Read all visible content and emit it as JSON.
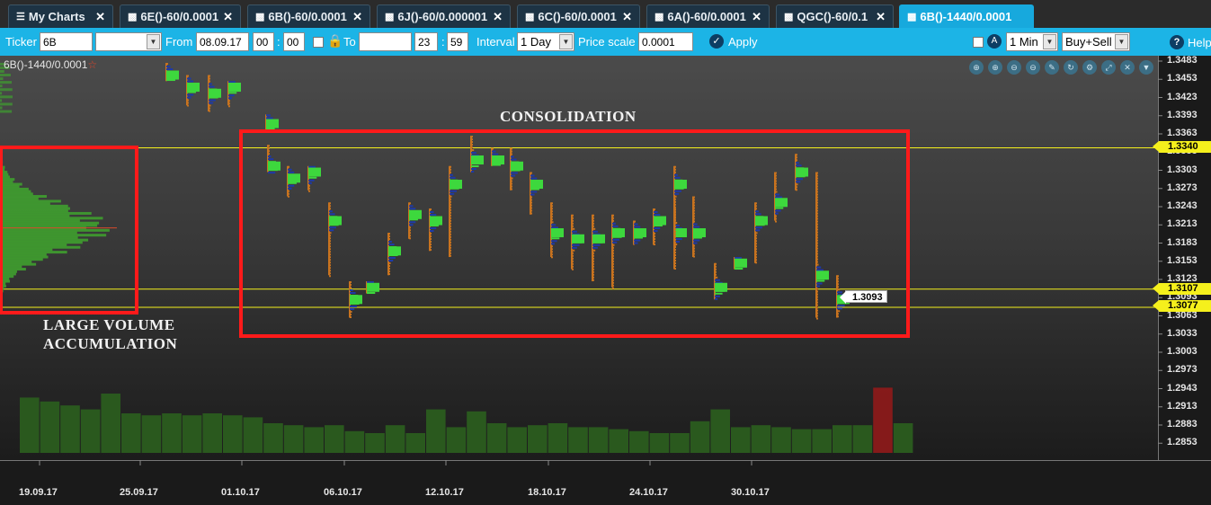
{
  "tabs": [
    {
      "label": "My Charts",
      "icon": "menu-icon",
      "active": false
    },
    {
      "label": "6E()-60/0.0001",
      "icon": "chart-icon",
      "active": false
    },
    {
      "label": "6B()-60/0.0001",
      "icon": "chart-icon",
      "active": false
    },
    {
      "label": "6J()-60/0.000001",
      "icon": "chart-icon",
      "active": false
    },
    {
      "label": "6C()-60/0.0001",
      "icon": "chart-icon",
      "active": false
    },
    {
      "label": "6A()-60/0.0001",
      "icon": "chart-icon",
      "active": false
    },
    {
      "label": "QGC()-60/0.1",
      "icon": "chart-icon",
      "active": false
    },
    {
      "label": "6B()-1440/0.0001",
      "icon": "chart-icon",
      "active": true
    }
  ],
  "toolbar": {
    "ticker_label": "Ticker",
    "ticker_value": "6B",
    "ticker_select_value": "",
    "from_label": "From",
    "from_date": "08.09.17",
    "from_hour": "00",
    "from_min": "00",
    "to_label": "To",
    "to_date": "",
    "to_hour": "23",
    "to_min": "59",
    "interval_label": "Interval",
    "interval_value": "1 Day",
    "price_scale_label": "Price scale",
    "price_scale_value": "0.0001",
    "apply_label": "Apply",
    "timeframe_value": "1 Min",
    "mode_value": "Buy+Sell",
    "help_label": "Help"
  },
  "chart": {
    "name": "6B()-1440/0.0001",
    "nav_icons": [
      "zoom-in-icon",
      "zoom-in-alt-icon",
      "zoom-out-icon",
      "zoom-out-alt-icon",
      "pencil-icon",
      "refresh-icon",
      "settings-icon",
      "expand-icon",
      "close-icon",
      "dropdown-icon"
    ],
    "annotations": {
      "consolidation": "CONSOLIDATION",
      "volume_line1": "LARGE VOLUME",
      "volume_line2": "ACCUMULATION"
    },
    "last_price": "1.3093",
    "level_tags": [
      "1.3340",
      "1.3107",
      "1.3077"
    ],
    "colors": {
      "accent": "#1cb4e6",
      "level_line": "#f5f01c",
      "annotation_box": "#ff1a1a",
      "volume_bar": "#2b5d1f",
      "volume_peak": "#8b1a1a"
    }
  },
  "chart_data": {
    "type": "table",
    "title": "",
    "y_ticks": [
      "1.3483",
      "1.3453",
      "1.3423",
      "1.3393",
      "1.3363",
      "1.3333",
      "1.3303",
      "1.3273",
      "1.3243",
      "1.3213",
      "1.3183",
      "1.3153",
      "1.3123",
      "1.3093",
      "1.3063",
      "1.3033",
      "1.3003",
      "1.2973",
      "1.2943",
      "1.2913",
      "1.2883",
      "1.2853"
    ],
    "x_ticks": [
      "19.09.17",
      "25.09.17",
      "01.10.17",
      "06.10.17",
      "12.10.17",
      "18.10.17",
      "24.10.17",
      "30.10.17"
    ],
    "horizontal_levels": [
      1.334,
      1.3107,
      1.3077
    ],
    "last_price": 1.3093,
    "sessions": [
      {
        "high": 1.348,
        "low": 1.345,
        "poc": 1.346
      },
      {
        "high": 1.346,
        "low": 1.341,
        "poc": 1.344
      },
      {
        "high": 1.346,
        "low": 1.34,
        "poc": 1.343
      },
      {
        "high": 1.345,
        "low": 1.341,
        "poc": 1.344
      },
      {
        "high": 1.3395,
        "low": 1.337,
        "poc": 1.338
      },
      {
        "high": 1.3345,
        "low": 1.33,
        "poc": 1.331
      },
      {
        "high": 1.331,
        "low": 1.326,
        "poc": 1.329
      },
      {
        "high": 1.331,
        "low": 1.327,
        "poc": 1.33
      },
      {
        "high": 1.325,
        "low": 1.313,
        "poc": 1.322
      },
      {
        "high": 1.312,
        "low": 1.306,
        "poc": 1.309
      },
      {
        "high": 1.312,
        "low": 1.31,
        "poc": 1.311
      },
      {
        "high": 1.32,
        "low": 1.313,
        "poc": 1.317
      },
      {
        "high": 1.325,
        "low": 1.319,
        "poc": 1.323
      },
      {
        "high": 1.324,
        "low": 1.317,
        "poc": 1.322
      },
      {
        "high": 1.331,
        "low": 1.316,
        "poc": 1.328
      },
      {
        "high": 1.336,
        "low": 1.33,
        "poc": 1.332
      },
      {
        "high": 1.334,
        "low": 1.331,
        "poc": 1.332
      },
      {
        "high": 1.334,
        "low": 1.327,
        "poc": 1.331
      },
      {
        "high": 1.33,
        "low": 1.323,
        "poc": 1.328
      },
      {
        "high": 1.325,
        "low": 1.316,
        "poc": 1.32
      },
      {
        "high": 1.323,
        "low": 1.314,
        "poc": 1.319
      },
      {
        "high": 1.323,
        "low": 1.312,
        "poc": 1.319
      },
      {
        "high": 1.323,
        "low": 1.311,
        "poc": 1.32
      },
      {
        "high": 1.322,
        "low": 1.318,
        "poc": 1.32
      },
      {
        "high": 1.324,
        "low": 1.318,
        "poc": 1.322
      },
      {
        "high": 1.324,
        "low": 1.314,
        "poc": 1.32
      },
      {
        "high": 1.331,
        "low": 1.318,
        "poc": 1.328
      },
      {
        "high": 1.326,
        "low": 1.316,
        "poc": 1.32
      },
      {
        "high": 1.315,
        "low": 1.309,
        "poc": 1.311
      },
      {
        "high": 1.316,
        "low": 1.314,
        "poc": 1.315
      },
      {
        "high": 1.325,
        "low": 1.315,
        "poc": 1.322
      },
      {
        "high": 1.33,
        "low": 1.322,
        "poc": 1.325
      },
      {
        "high": 1.333,
        "low": 1.327,
        "poc": 1.33
      },
      {
        "high": 1.33,
        "low": 1.306,
        "poc": 1.313
      },
      {
        "high": 1.313,
        "low": 1.306,
        "poc": 1.309
      }
    ],
    "volume": [
      28,
      26,
      24,
      22,
      30,
      20,
      19,
      20,
      19,
      20,
      19,
      18,
      15,
      14,
      13,
      14,
      11,
      10,
      14,
      10,
      22,
      13,
      21,
      15,
      13,
      14,
      15,
      13,
      13,
      12,
      11,
      10,
      10,
      16,
      22,
      13,
      14,
      13,
      12,
      12,
      14,
      14,
      33,
      15
    ]
  }
}
